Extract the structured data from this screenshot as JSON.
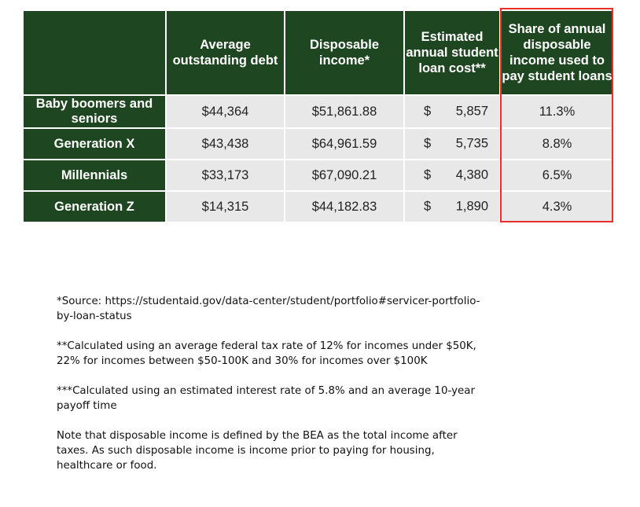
{
  "table": {
    "columns": [
      "",
      "Average outstanding debt",
      "Disposable income*",
      "Estimated annual student loan cost**",
      "Share of annual disposable income used to pay student loans"
    ],
    "rows": [
      {
        "label": "Baby boomers and seniors",
        "debt": "$44,364",
        "income": "$51,861.88",
        "cost_currency": "$",
        "cost": "5,857",
        "share": "11.3%"
      },
      {
        "label": "Generation X",
        "debt": "$43,438",
        "income": "$64,961.59",
        "cost_currency": "$",
        "cost": "5,735",
        "share": "8.8%"
      },
      {
        "label": "Millennials",
        "debt": "$33,173",
        "income": "$67,090.21",
        "cost_currency": "$",
        "cost": "4,380",
        "share": "6.5%"
      },
      {
        "label": "Generation Z",
        "debt": "$14,315",
        "income": "$44,182.83",
        "cost_currency": "$",
        "cost": "1,890",
        "share": "4.3%"
      }
    ]
  },
  "colors": {
    "header_bg": "#1e4620",
    "cell_bg": "#e8e8e8",
    "highlight_border": "#e8302a"
  },
  "footnotes": {
    "source": "*Source: https://studentaid.gov/data-center/student/portfolio#servicer-portfolio-by-loan-status",
    "tax": "**Calculated using an average federal tax rate of 12% for incomes under $50K, 22% for incomes between $50-100K and 30% for incomes over $100K",
    "interest": "***Calculated using an estimated interest rate of 5.8% and an average 10-year payoff time",
    "note": "Note that disposable income is defined by the BEA as the total income after taxes.  As such disposable income is income prior to paying for housing, healthcare or food."
  }
}
